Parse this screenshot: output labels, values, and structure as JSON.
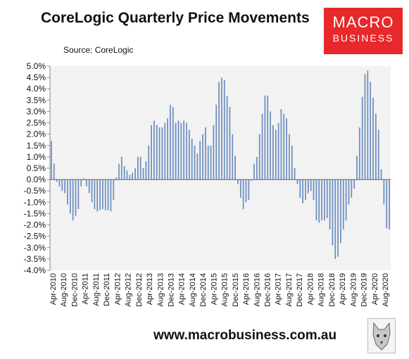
{
  "header": {
    "title": "CoreLogic Quarterly Price Movements",
    "source": "Source: CoreLogic"
  },
  "logo": {
    "line1": "MACRO",
    "line2": "BUSINESS",
    "color": "#e8282b"
  },
  "footer": {
    "url": "www.macrobusiness.com.au"
  },
  "colors": {
    "bar": "#6c8ebf",
    "plot_bg": "#f2f2f2",
    "axis": "#888888"
  },
  "chart_data": {
    "type": "bar",
    "title": "CoreLogic Quarterly Price Movements",
    "xlabel": "",
    "ylabel": "",
    "ylim": [
      -4.0,
      5.0
    ],
    "yticks": [
      "-4.0%",
      "-3.5%",
      "-3.0%",
      "-2.5%",
      "-2.0%",
      "-1.5%",
      "-1.0%",
      "-0.5%",
      "0.0%",
      "0.5%",
      "1.0%",
      "1.5%",
      "2.0%",
      "2.5%",
      "3.0%",
      "3.5%",
      "4.0%",
      "4.5%",
      "5.0%"
    ],
    "x_tick_labels": [
      "Apr-2010",
      "Aug-2010",
      "Dec-2010",
      "Apr-2011",
      "Aug-2011",
      "Dec-2011",
      "Apr-2012",
      "Aug-2012",
      "Dec-2012",
      "Apr-2013",
      "Aug-2013",
      "Dec-2013",
      "Apr-2014",
      "Aug-2014",
      "Dec-2014",
      "Apr-2015",
      "Aug-2015",
      "Dec-2015",
      "Apr-2016",
      "Aug-2016",
      "Dec-2016",
      "Apr-2017",
      "Aug-2017",
      "Dec-2017",
      "Apr-2018",
      "Aug-2018",
      "Dec-2018",
      "Apr-2019",
      "Aug-2019",
      "Dec-2019",
      "Apr-2020",
      "Aug-2020"
    ],
    "x_start": "Apr-2010",
    "x_end": "Aug-2020",
    "grid": false,
    "series": [
      {
        "values": [
          1.7,
          0.7,
          -0.1,
          -0.3,
          -0.5,
          -0.6,
          -1.1,
          -1.5,
          -1.8,
          -1.6,
          -1.3,
          -0.3,
          0.05,
          -0.3,
          -0.6,
          -1.0,
          -1.3,
          -1.4,
          -1.35,
          -1.3,
          -1.35,
          -1.35,
          -1.4,
          -0.9,
          0.1,
          0.7,
          1.0,
          0.6,
          0.4,
          0.2,
          0.3,
          0.5,
          1.0,
          1.0,
          0.5,
          0.8,
          1.5,
          2.4,
          2.6,
          2.4,
          2.3,
          2.3,
          2.5,
          2.7,
          3.3,
          3.2,
          2.5,
          2.6,
          2.5,
          2.6,
          2.5,
          2.2,
          1.8,
          1.5,
          1.15,
          1.7,
          2.0,
          2.3,
          1.5,
          1.5,
          2.4,
          3.3,
          4.3,
          4.5,
          4.4,
          3.7,
          3.2,
          2.0,
          1.05,
          -0.2,
          -0.8,
          -1.3,
          -1.0,
          -0.9,
          -0.05,
          0.7,
          1.0,
          2.0,
          2.9,
          3.7,
          3.7,
          3.0,
          2.4,
          2.2,
          2.5,
          3.1,
          2.9,
          2.7,
          2.0,
          1.5,
          0.5,
          -0.2,
          -0.8,
          -1.05,
          -0.9,
          -0.6,
          -0.5,
          -0.9,
          -1.8,
          -1.9,
          -1.8,
          -1.8,
          -1.7,
          -2.2,
          -2.9,
          -3.5,
          -3.4,
          -2.8,
          -2.2,
          -1.8,
          -1.1,
          -0.8,
          -0.4,
          1.05,
          2.3,
          3.65,
          4.65,
          4.8,
          4.3,
          3.6,
          2.9,
          2.2,
          0.45,
          -1.1,
          -2.15,
          -2.2
        ]
      }
    ]
  }
}
